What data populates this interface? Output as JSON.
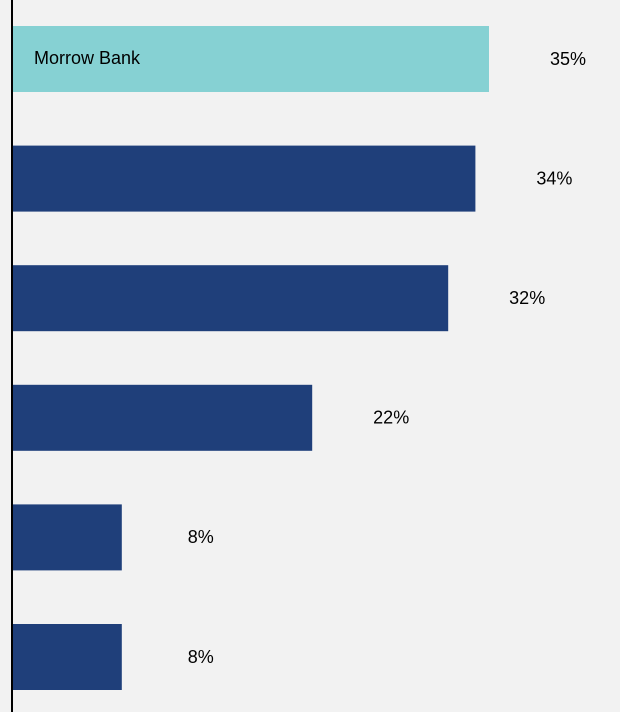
{
  "chart_data": {
    "type": "bar",
    "orientation": "horizontal",
    "categories": [
      "Morrow Bank",
      "",
      "",
      "",
      "",
      ""
    ],
    "values": [
      35,
      34,
      32,
      22,
      8,
      8
    ],
    "value_labels": [
      "35%",
      "34%",
      "32%",
      "22%",
      "8%",
      "8%"
    ],
    "unit": "%",
    "highlight_index": 0,
    "title": "",
    "xlabel": "",
    "ylabel": "",
    "xlim": [
      0,
      42.5
    ],
    "grid": false,
    "legend": "none"
  },
  "colors": {
    "background": "#f2f2f2",
    "highlight_bar": "#86d1d3",
    "bar": "#1f3f7a",
    "axis": "#000000",
    "text": "#000000"
  }
}
